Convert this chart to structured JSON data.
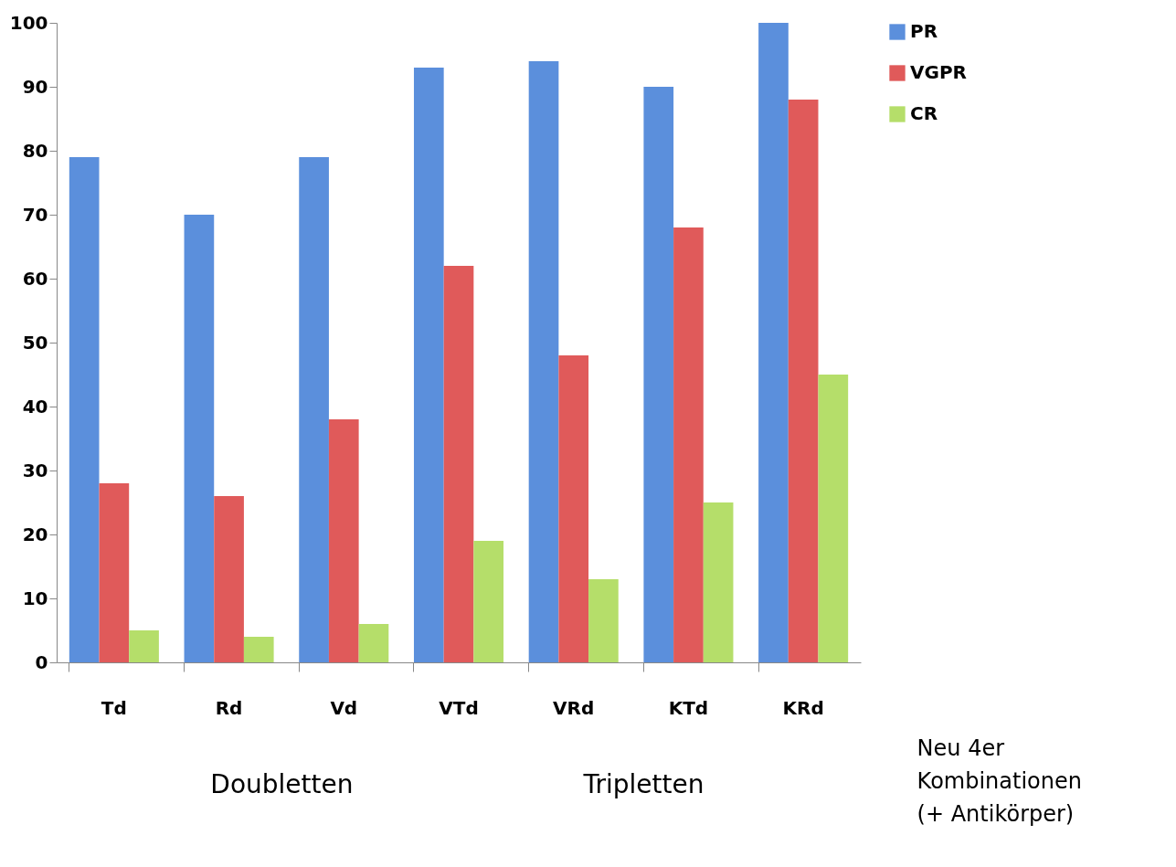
{
  "chart_data": {
    "type": "bar",
    "categories": [
      "Td",
      "Rd",
      "Vd",
      "VTd",
      "VRd",
      "KTd",
      "KRd"
    ],
    "series": [
      {
        "name": "PR",
        "color": "#5b8fdc",
        "values": [
          79,
          70,
          79,
          93,
          94,
          90,
          100
        ]
      },
      {
        "name": "VGPR",
        "color": "#e05a5a",
        "values": [
          28,
          26,
          38,
          62,
          48,
          68,
          88
        ]
      },
      {
        "name": "CR",
        "color": "#b5de6a",
        "values": [
          5,
          4,
          6,
          19,
          13,
          25,
          45
        ]
      }
    ],
    "ylim": [
      0,
      100
    ],
    "yticks": [
      0,
      10,
      20,
      30,
      40,
      50,
      60,
      70,
      80,
      90,
      100
    ],
    "grid": false,
    "legend": "right",
    "annotations": [
      "Doubletten",
      "Tripletten",
      "Neu 4er\nKombinationen\n(+ Antikörper)"
    ]
  }
}
